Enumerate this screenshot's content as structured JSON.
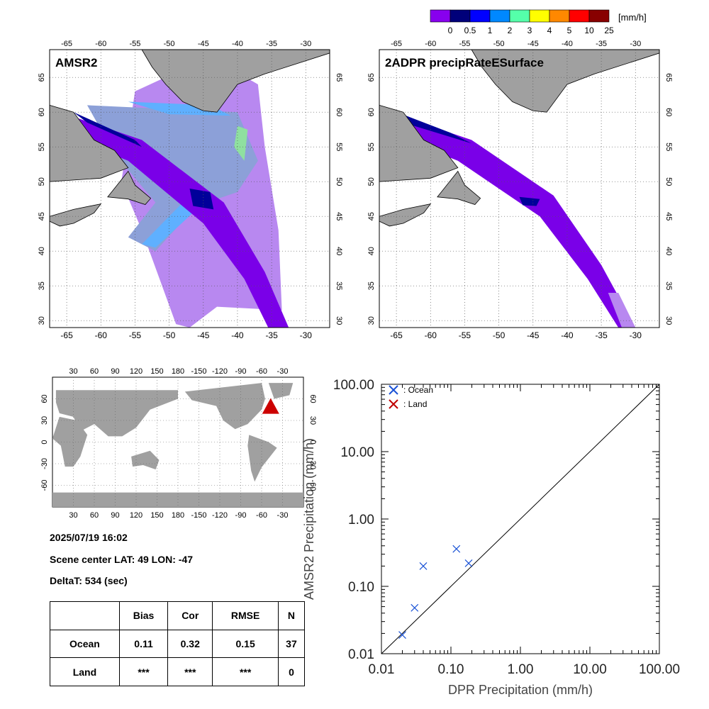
{
  "colorbar": {
    "unit_label": "[mm/h]",
    "tick_labels": [
      "0",
      "0.5",
      "1",
      "2",
      "3",
      "4",
      "5",
      "10",
      "25"
    ],
    "colors": [
      "#8800ee",
      "#00007a",
      "#0000ff",
      "#0088ff",
      "#55ffaa",
      "#ffff00",
      "#ff8800",
      "#ff0000",
      "#880000"
    ]
  },
  "map_lon_ticks": [
    "-65",
    "-60",
    "-55",
    "-50",
    "-45",
    "-40",
    "-35",
    "-30"
  ],
  "map_lat_ticks": [
    "30",
    "35",
    "40",
    "45",
    "50",
    "55",
    "60",
    "65"
  ],
  "panel_left": {
    "title": "AMSR2"
  },
  "panel_right": {
    "title": "2ADPR precipRateESurface"
  },
  "world_map": {
    "lon_ticks": [
      "30",
      "60",
      "90",
      "120",
      "150",
      "180",
      "-150",
      "-120",
      "-90",
      "-60",
      "-30"
    ],
    "lat_ticks": [
      "-60",
      "-30",
      "0",
      "30",
      "60"
    ],
    "marker": {
      "lat": 49,
      "lon": -47
    }
  },
  "info": {
    "datetime": "2025/07/19 16:02",
    "scene_center": "Scene center LAT: 49   LON: -47",
    "deltat": "DeltaT:  534 (sec)"
  },
  "stats_table": {
    "headers": [
      "",
      "Bias",
      "Cor",
      "RMSE",
      "N"
    ],
    "rows": [
      {
        "label": "Ocean",
        "values": [
          "0.11",
          "0.32",
          "0.15",
          "37"
        ]
      },
      {
        "label": "Land",
        "values": [
          "***",
          "***",
          "***",
          "0"
        ]
      }
    ]
  },
  "chart_data": {
    "type": "scatter",
    "xlabel": "DPR Precipitation (mm/h)",
    "ylabel": "AMSR2 Precipitation (mm/h)",
    "xscale": "log",
    "yscale": "log",
    "xlim": [
      0.01,
      100
    ],
    "ylim": [
      0.01,
      100
    ],
    "x_tick_labels": [
      "0.01",
      "0.10",
      "1.00",
      "10.00",
      "100.00"
    ],
    "y_tick_labels": [
      "0.01",
      "0.10",
      "1.00",
      "10.00",
      "100.00"
    ],
    "one_to_one_line": true,
    "legend_position": "top-left",
    "series": [
      {
        "name": ": Ocean",
        "color": "#1a52d6",
        "marker": "x",
        "points": [
          [
            0.02,
            0.019
          ],
          [
            0.03,
            0.048
          ],
          [
            0.04,
            0.2
          ],
          [
            0.12,
            0.36
          ],
          [
            0.18,
            0.22
          ]
        ]
      },
      {
        "name": ": Land",
        "color": "#c00000",
        "marker": "x",
        "points": []
      }
    ]
  }
}
